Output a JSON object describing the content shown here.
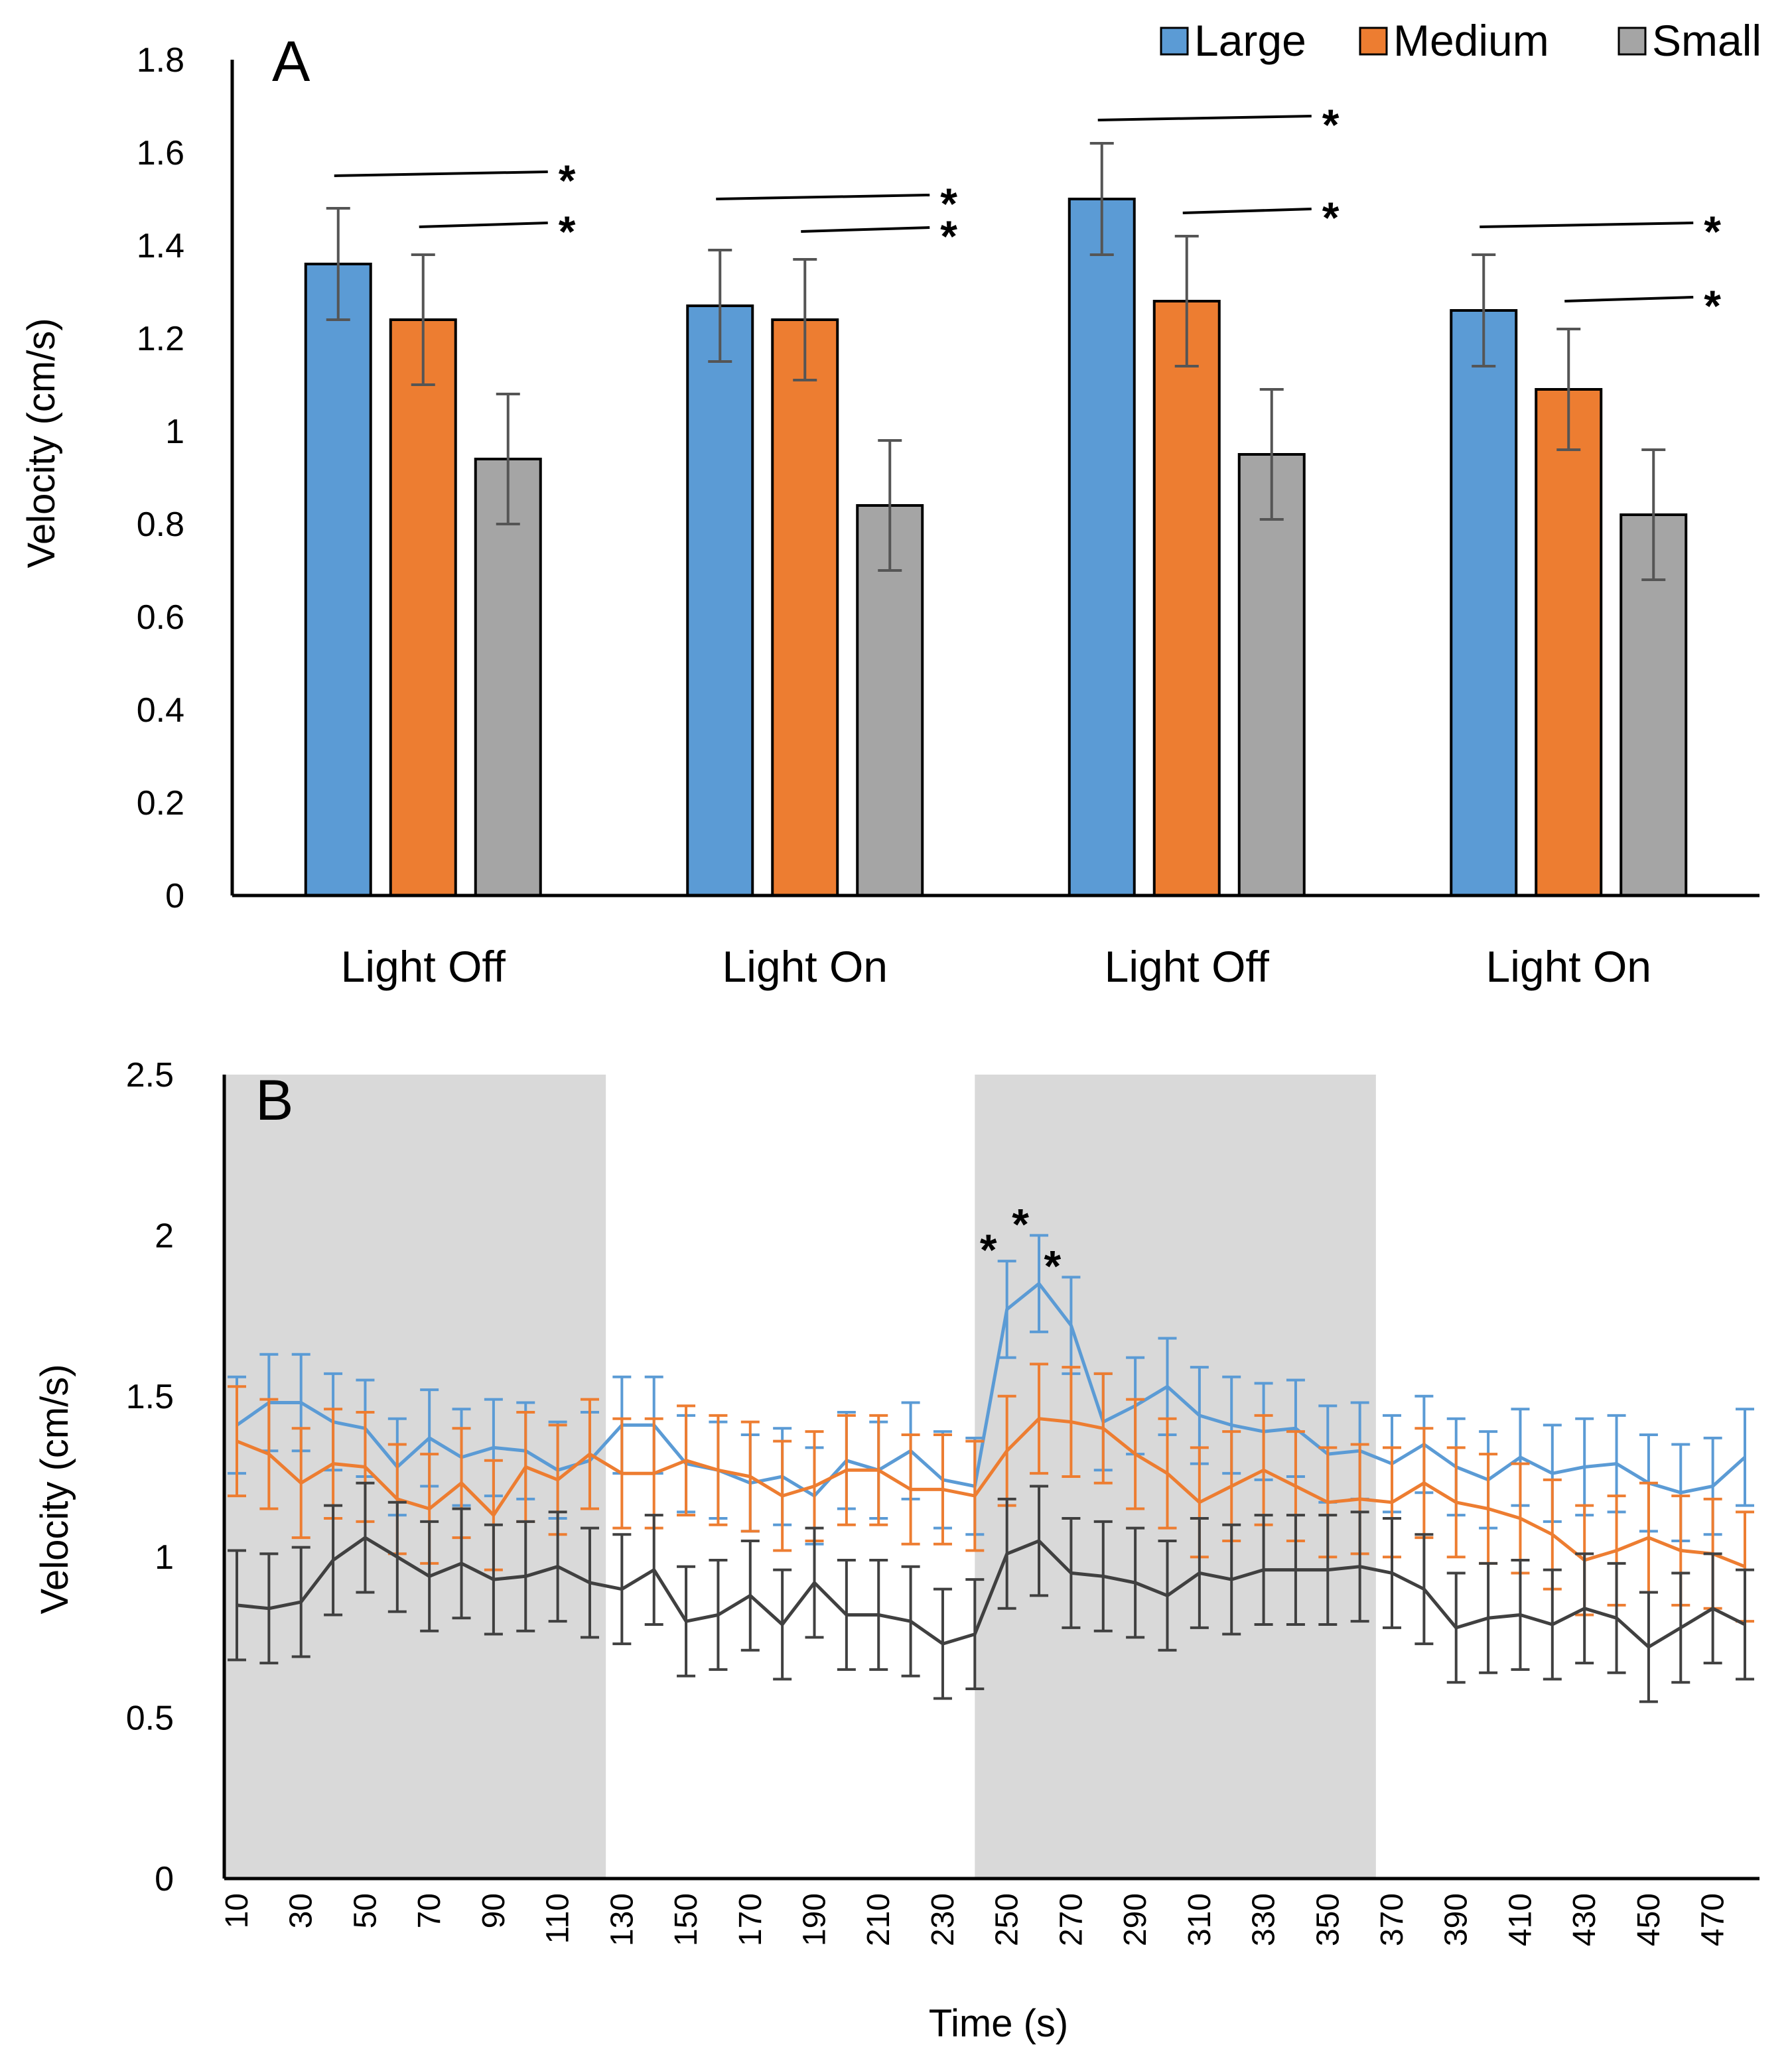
{
  "colors": {
    "large": "#5B9BD5",
    "medium": "#ED7D31",
    "small": "#A5A5A5",
    "small_line": "#404040",
    "shading": "#D9D9D9",
    "errorbar_a": "#555555"
  },
  "legend": {
    "large": "Large",
    "medium": "Medium",
    "small": "Small"
  },
  "chart_data": [
    {
      "type": "bar",
      "panel": "A",
      "title": "",
      "xlabel": "",
      "ylabel": "Velocity (cm/s)",
      "ylim": [
        0,
        1.8
      ],
      "yticks": [
        0,
        0.2,
        0.4,
        0.6,
        0.8,
        1,
        1.2,
        1.4,
        1.6,
        1.8
      ],
      "ytick_labels": [
        "0",
        "0.2",
        "0.4",
        "0.6",
        "0.8",
        "1",
        "1.2",
        "1.4",
        "1.6",
        "1.8"
      ],
      "categories": [
        "Light Off",
        "Light On",
        "Light Off",
        "Light On"
      ],
      "series": [
        {
          "name": "Large",
          "values": [
            1.36,
            1.27,
            1.5,
            1.26
          ],
          "errors": [
            0.12,
            0.12,
            0.12,
            0.12
          ]
        },
        {
          "name": "Medium",
          "values": [
            1.24,
            1.24,
            1.28,
            1.09
          ],
          "errors": [
            0.14,
            0.13,
            0.14,
            0.13
          ]
        },
        {
          "name": "Small",
          "values": [
            0.94,
            0.84,
            0.95,
            0.82
          ],
          "errors": [
            0.14,
            0.14,
            0.14,
            0.14
          ]
        }
      ],
      "significance": [
        {
          "group": 0,
          "from": "Large",
          "y": 1.55,
          "label": "*"
        },
        {
          "group": 0,
          "from": "Medium",
          "y": 1.44,
          "label": "*"
        },
        {
          "group": 1,
          "from": "Large",
          "y": 1.5,
          "label": "*"
        },
        {
          "group": 1,
          "from": "Medium",
          "y": 1.43,
          "label": "*"
        },
        {
          "group": 2,
          "from": "Large",
          "y": 1.67,
          "label": "*"
        },
        {
          "group": 2,
          "from": "Medium",
          "y": 1.47,
          "label": "*"
        },
        {
          "group": 3,
          "from": "Large",
          "y": 1.44,
          "label": "*"
        },
        {
          "group": 3,
          "from": "Medium",
          "y": 1.28,
          "label": "*"
        }
      ]
    },
    {
      "type": "line",
      "panel": "B",
      "title": "",
      "xlabel": "Time (s)",
      "ylabel": "Velocity (cm/s)",
      "ylim": [
        0,
        2.5
      ],
      "yticks": [
        0,
        0.5,
        1,
        1.5,
        2,
        2.5
      ],
      "ytick_labels": [
        "0",
        "0.5",
        "1",
        "1.5",
        "2",
        "2.5"
      ],
      "x": [
        10,
        20,
        30,
        40,
        50,
        60,
        70,
        80,
        90,
        100,
        110,
        120,
        130,
        140,
        150,
        160,
        170,
        180,
        190,
        200,
        210,
        220,
        230,
        240,
        250,
        260,
        270,
        280,
        290,
        300,
        310,
        320,
        330,
        340,
        350,
        360,
        370,
        380,
        390,
        400,
        410,
        420,
        430,
        440,
        450,
        460,
        470,
        480
      ],
      "xtick_labels": [
        "10",
        "30",
        "50",
        "70",
        "90",
        "110",
        "130",
        "150",
        "170",
        "190",
        "210",
        "230",
        "250",
        "270",
        "290",
        "310",
        "330",
        "350",
        "370",
        "390",
        "410",
        "430",
        "450",
        "470"
      ],
      "shaded_regions": [
        [
          10,
          125
        ],
        [
          245,
          365
        ]
      ],
      "series": [
        {
          "name": "Large",
          "values": [
            1.41,
            1.48,
            1.48,
            1.42,
            1.4,
            1.28,
            1.37,
            1.31,
            1.34,
            1.33,
            1.27,
            1.3,
            1.41,
            1.41,
            1.29,
            1.27,
            1.23,
            1.25,
            1.19,
            1.3,
            1.27,
            1.33,
            1.24,
            1.22,
            1.77,
            1.85,
            1.72,
            1.42,
            1.47,
            1.53,
            1.44,
            1.41,
            1.39,
            1.4,
            1.32,
            1.33,
            1.29,
            1.35,
            1.28,
            1.24,
            1.31,
            1.26,
            1.28,
            1.29,
            1.23,
            1.2,
            1.22,
            1.31
          ],
          "errors": [
            0.15,
            0.15,
            0.15,
            0.15,
            0.15,
            0.15,
            0.15,
            0.15,
            0.15,
            0.15,
            0.15,
            0.15,
            0.15,
            0.15,
            0.15,
            0.15,
            0.15,
            0.15,
            0.15,
            0.15,
            0.15,
            0.15,
            0.15,
            0.15,
            0.15,
            0.15,
            0.15,
            0.15,
            0.15,
            0.15,
            0.15,
            0.15,
            0.15,
            0.15,
            0.15,
            0.15,
            0.15,
            0.15,
            0.15,
            0.15,
            0.15,
            0.15,
            0.15,
            0.15,
            0.15,
            0.15,
            0.15,
            0.15
          ]
        },
        {
          "name": "Medium",
          "values": [
            1.36,
            1.32,
            1.23,
            1.29,
            1.28,
            1.18,
            1.15,
            1.23,
            1.13,
            1.28,
            1.24,
            1.32,
            1.26,
            1.26,
            1.3,
            1.27,
            1.25,
            1.19,
            1.22,
            1.27,
            1.27,
            1.21,
            1.21,
            1.19,
            1.33,
            1.43,
            1.42,
            1.4,
            1.32,
            1.26,
            1.17,
            1.22,
            1.27,
            1.22,
            1.17,
            1.18,
            1.17,
            1.23,
            1.17,
            1.15,
            1.12,
            1.07,
            0.99,
            1.02,
            1.06,
            1.02,
            1.01,
            0.97
          ],
          "errors": [
            0.17,
            0.17,
            0.17,
            0.17,
            0.17,
            0.17,
            0.17,
            0.17,
            0.17,
            0.17,
            0.17,
            0.17,
            0.17,
            0.17,
            0.17,
            0.17,
            0.17,
            0.17,
            0.17,
            0.17,
            0.17,
            0.17,
            0.17,
            0.17,
            0.17,
            0.17,
            0.17,
            0.17,
            0.17,
            0.17,
            0.17,
            0.17,
            0.17,
            0.17,
            0.17,
            0.17,
            0.17,
            0.17,
            0.17,
            0.17,
            0.17,
            0.17,
            0.17,
            0.17,
            0.17,
            0.17,
            0.17,
            0.17
          ]
        },
        {
          "name": "Small",
          "values": [
            0.85,
            0.84,
            0.86,
            0.99,
            1.06,
            1.0,
            0.94,
            0.98,
            0.93,
            0.94,
            0.97,
            0.92,
            0.9,
            0.96,
            0.8,
            0.82,
            0.88,
            0.79,
            0.92,
            0.82,
            0.82,
            0.8,
            0.73,
            0.76,
            1.01,
            1.05,
            0.95,
            0.94,
            0.92,
            0.88,
            0.95,
            0.93,
            0.96,
            0.96,
            0.96,
            0.97,
            0.95,
            0.9,
            0.78,
            0.81,
            0.82,
            0.79,
            0.84,
            0.81,
            0.72,
            0.78,
            0.84,
            0.79
          ],
          "errors": [
            0.17,
            0.17,
            0.17,
            0.17,
            0.17,
            0.17,
            0.17,
            0.17,
            0.17,
            0.17,
            0.17,
            0.17,
            0.17,
            0.17,
            0.17,
            0.17,
            0.17,
            0.17,
            0.17,
            0.17,
            0.17,
            0.17,
            0.17,
            0.17,
            0.17,
            0.17,
            0.17,
            0.17,
            0.17,
            0.17,
            0.17,
            0.17,
            0.17,
            0.17,
            0.17,
            0.17,
            0.17,
            0.17,
            0.17,
            0.17,
            0.17,
            0.17,
            0.17,
            0.17,
            0.17,
            0.17,
            0.17,
            0.17
          ]
        }
      ],
      "significance": [
        {
          "x": 250,
          "label": "*"
        },
        {
          "x": 260,
          "label": "*"
        },
        {
          "x": 270,
          "label": "*"
        }
      ]
    }
  ]
}
